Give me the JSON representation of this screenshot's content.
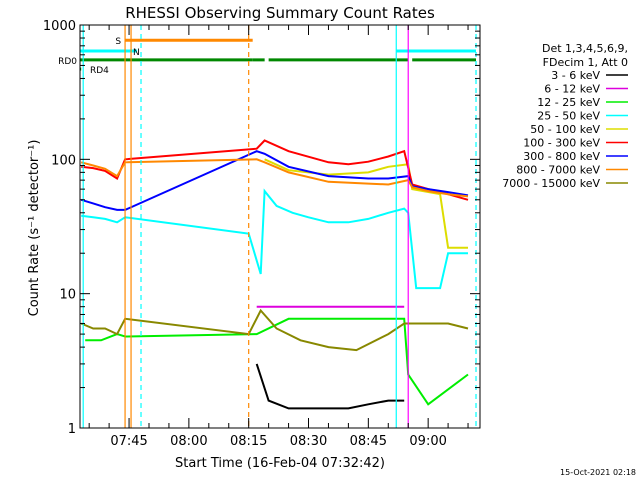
{
  "chart_data": {
    "type": "line",
    "title": "RHESSI Observing Summary Count Rates",
    "ylabel": "Count Rate (s⁻¹ detector⁻¹)",
    "xlabel": "Start Time (16-Feb-04 07:32:42)",
    "y_scale": "log",
    "ylim": [
      1,
      1000
    ],
    "y_ticks": [
      {
        "value": 1,
        "label": "1"
      },
      {
        "value": 10,
        "label": "10"
      },
      {
        "value": 100,
        "label": "100"
      },
      {
        "value": 1000,
        "label": "1000"
      }
    ],
    "xlim": [
      "07:32:42",
      "09:13:00"
    ],
    "x_ticks": [
      "07:45",
      "08:00",
      "08:15",
      "08:30",
      "08:45",
      "09:00"
    ],
    "timestamp": "15-Oct-2021 02:18",
    "legend_header": [
      "Det 1,3,4,5,6,9,",
      "FDecim 1, Att 0"
    ],
    "series": [
      {
        "name": "3 - 6 keV",
        "color": "#000000",
        "points": [
          [
            "08:17",
            3.0
          ],
          [
            "08:20",
            1.6
          ],
          [
            "08:25",
            1.4
          ],
          [
            "08:30",
            1.4
          ],
          [
            "08:40",
            1.4
          ],
          [
            "08:45",
            1.5
          ],
          [
            "08:50",
            1.6
          ],
          [
            "08:54",
            1.6
          ]
        ]
      },
      {
        "name": "6 - 12 keV",
        "color": "#dd00dd",
        "points": [
          [
            "08:17",
            8.0
          ],
          [
            "08:25",
            8.0
          ],
          [
            "08:35",
            8.0
          ],
          [
            "08:45",
            8.0
          ],
          [
            "08:50",
            8.0
          ],
          [
            "08:54",
            8.0
          ]
        ]
      },
      {
        "name": "12 - 25 keV",
        "color": "#00ee00",
        "points": [
          [
            "07:34",
            4.5
          ],
          [
            "07:38",
            4.5
          ],
          [
            "07:42",
            5.0
          ],
          [
            "07:44",
            4.8
          ],
          [
            "08:17",
            5.0
          ],
          [
            "08:25",
            6.5
          ],
          [
            "08:35",
            6.5
          ],
          [
            "08:45",
            6.5
          ],
          [
            "08:54",
            6.5
          ],
          [
            "08:55",
            2.5
          ],
          [
            "09:00",
            1.5
          ],
          [
            "09:10",
            2.5
          ]
        ]
      },
      {
        "name": "25 - 50 keV",
        "color": "#00ffff",
        "points": [
          [
            "07:33",
            38
          ],
          [
            "07:36",
            37
          ],
          [
            "07:39",
            36
          ],
          [
            "07:42",
            34
          ],
          [
            "07:44",
            37
          ],
          [
            "08:15",
            28
          ],
          [
            "08:18",
            14
          ],
          [
            "08:19",
            58
          ],
          [
            "08:22",
            45
          ],
          [
            "08:26",
            40
          ],
          [
            "08:30",
            37
          ],
          [
            "08:35",
            34
          ],
          [
            "08:40",
            34
          ],
          [
            "08:45",
            36
          ],
          [
            "08:50",
            40
          ],
          [
            "08:54",
            43
          ],
          [
            "08:55",
            40
          ],
          [
            "08:57",
            11
          ],
          [
            "09:03",
            11
          ],
          [
            "09:05",
            20
          ],
          [
            "09:10",
            20
          ]
        ]
      },
      {
        "name": "50 - 100 keV",
        "color": "#dddd00",
        "points": [
          [
            "08:19",
            100
          ],
          [
            "08:25",
            83
          ],
          [
            "08:35",
            77
          ],
          [
            "08:45",
            80
          ],
          [
            "08:50",
            88
          ],
          [
            "08:55",
            92
          ],
          [
            "08:56",
            60
          ],
          [
            "09:03",
            55
          ],
          [
            "09:05",
            22
          ],
          [
            "09:10",
            22
          ]
        ]
      },
      {
        "name": "100 - 300 keV",
        "color": "#ff0000",
        "points": [
          [
            "07:33",
            88
          ],
          [
            "07:36",
            86
          ],
          [
            "07:39",
            82
          ],
          [
            "07:42",
            72
          ],
          [
            "07:44",
            100
          ],
          [
            "08:17",
            120
          ],
          [
            "08:19",
            138
          ],
          [
            "08:25",
            115
          ],
          [
            "08:35",
            95
          ],
          [
            "08:40",
            92
          ],
          [
            "08:45",
            96
          ],
          [
            "08:50",
            105
          ],
          [
            "08:54",
            115
          ],
          [
            "08:56",
            65
          ],
          [
            "09:00",
            60
          ],
          [
            "09:05",
            55
          ],
          [
            "09:10",
            50
          ]
        ]
      },
      {
        "name": "300 - 800 keV",
        "color": "#0000ff",
        "points": [
          [
            "07:33",
            50
          ],
          [
            "07:36",
            47
          ],
          [
            "07:39",
            44
          ],
          [
            "07:42",
            42
          ],
          [
            "07:44",
            42
          ],
          [
            "08:17",
            115
          ],
          [
            "08:19",
            110
          ],
          [
            "08:25",
            88
          ],
          [
            "08:35",
            75
          ],
          [
            "08:45",
            72
          ],
          [
            "08:50",
            72
          ],
          [
            "08:55",
            75
          ],
          [
            "08:56",
            63
          ],
          [
            "09:00",
            60
          ],
          [
            "09:05",
            57
          ],
          [
            "09:10",
            54
          ]
        ]
      },
      {
        "name": "800 - 7000 keV",
        "color": "#ff8800",
        "points": [
          [
            "07:33",
            95
          ],
          [
            "07:36",
            90
          ],
          [
            "07:39",
            85
          ],
          [
            "07:42",
            75
          ],
          [
            "07:44",
            95
          ],
          [
            "08:17",
            100
          ],
          [
            "08:19",
            95
          ],
          [
            "08:25",
            80
          ],
          [
            "08:35",
            68
          ],
          [
            "08:45",
            66
          ],
          [
            "08:50",
            65
          ],
          [
            "08:55",
            70
          ],
          [
            "08:56",
            62
          ],
          [
            "09:00",
            58
          ],
          [
            "09:05",
            55
          ],
          [
            "09:10",
            53
          ]
        ]
      },
      {
        "name": "7000 - 15000 keV",
        "color": "#888800",
        "points": [
          [
            "07:33",
            6.0
          ],
          [
            "07:36",
            5.5
          ],
          [
            "07:39",
            5.5
          ],
          [
            "07:42",
            5.0
          ],
          [
            "07:44",
            6.5
          ],
          [
            "08:15",
            5.0
          ],
          [
            "08:18",
            7.5
          ],
          [
            "08:22",
            5.5
          ],
          [
            "08:28",
            4.5
          ],
          [
            "08:35",
            4.0
          ],
          [
            "08:42",
            3.8
          ],
          [
            "08:50",
            5.0
          ],
          [
            "08:54",
            6.0
          ],
          [
            "08:57",
            6.0
          ],
          [
            "09:05",
            6.0
          ],
          [
            "09:10",
            5.5
          ]
        ]
      }
    ],
    "flag_bars": [
      {
        "label": "S",
        "color": "#ff8800",
        "level": 770,
        "segments": [
          [
            "07:44",
            "08:16"
          ]
        ]
      },
      {
        "label": "N",
        "color": "#00ffff",
        "level": 640,
        "segments": [
          [
            "07:32:42",
            "07:47"
          ],
          [
            "08:52",
            "09:12"
          ]
        ]
      },
      {
        "label": "RD0",
        "color": "#008800",
        "level": 550,
        "segments": [
          [
            "07:32:42",
            "08:16"
          ],
          [
            "08:16",
            "08:19"
          ],
          [
            "08:20",
            "08:55"
          ],
          [
            "08:56",
            "09:12"
          ]
        ]
      },
      {
        "label": "RD4",
        "color": "#008800",
        "level": 470,
        "segments": [
          [
            "07:32:42",
            "07:33"
          ]
        ]
      }
    ],
    "vertical_lines": [
      {
        "time": "07:33:30",
        "color": "#00ffff",
        "style": "solid"
      },
      {
        "time": "07:44",
        "color": "#ff8800",
        "style": "solid"
      },
      {
        "time": "07:45:30",
        "color": "#ff8800",
        "style": "solid"
      },
      {
        "time": "07:48",
        "color": "#00ffff",
        "style": "dashed"
      },
      {
        "time": "08:15",
        "color": "#ff8800",
        "style": "dashed"
      },
      {
        "time": "08:52",
        "color": "#00ffff",
        "style": "solid"
      },
      {
        "time": "08:55",
        "color": "#ff00ff",
        "style": "solid"
      },
      {
        "time": "09:12",
        "color": "#00ffff",
        "style": "dashed"
      }
    ]
  }
}
